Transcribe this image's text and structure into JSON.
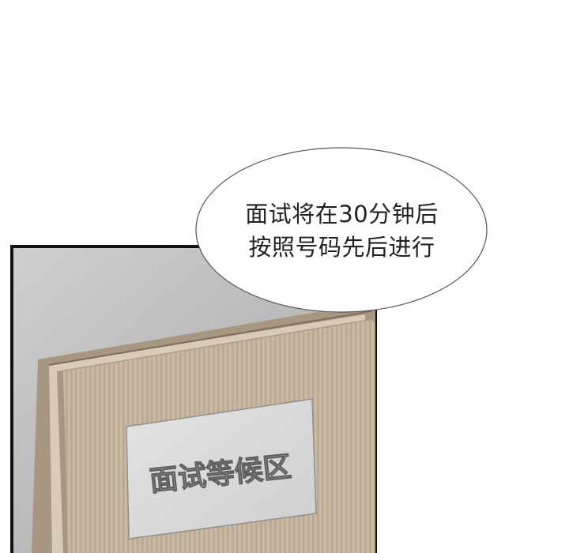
{
  "speech_bubble": {
    "line1": "面试将在30分钟后",
    "line2": "按照号码先后进行"
  },
  "door_sign": {
    "text": "面试等候区"
  },
  "colors": {
    "frame_border": "#111111",
    "wall_gray": "#bdbdbd",
    "door_wood": "#c8b8a3",
    "door_wood_dark": "#a8977f",
    "sign_plate": "#d9d9d9",
    "sign_text": "#9a9a9a"
  }
}
